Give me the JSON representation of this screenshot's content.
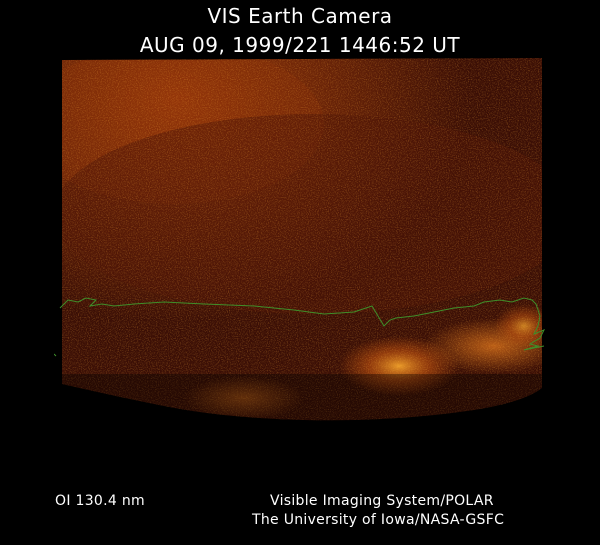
{
  "title": {
    "line1": "VIS Earth Camera",
    "line2": "AUG 09, 1999/221 1446:52 UT"
  },
  "footer": {
    "filter": "OI  130.4 nm",
    "credit_line1": "Visible Imaging System/POLAR",
    "credit_line2": "The University of Iowa/NASA-GSFC"
  },
  "colors": {
    "background": "#000000",
    "image_base": "#4a1206",
    "glow": "#e06a10",
    "limb_line": "#3f8f2a"
  }
}
